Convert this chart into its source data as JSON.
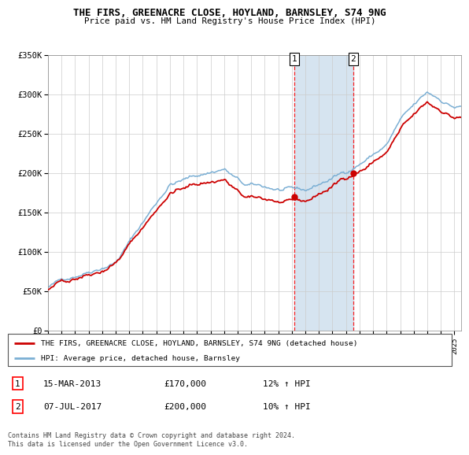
{
  "title": "THE FIRS, GREENACRE CLOSE, HOYLAND, BARNSLEY, S74 9NG",
  "subtitle": "Price paid vs. HM Land Registry's House Price Index (HPI)",
  "ylim": [
    0,
    350000
  ],
  "xlim_start": 1995.0,
  "xlim_end": 2025.5,
  "hpi_color": "#7bafd4",
  "price_color": "#cc0000",
  "highlight_color": "#d6e4f0",
  "sale1_year": 2013.2,
  "sale1_price": 170000,
  "sale1_label": "15-MAR-2013",
  "sale1_hpi_text": "12% ↑ HPI",
  "sale2_year": 2017.53,
  "sale2_price": 200000,
  "sale2_label": "07-JUL-2017",
  "sale2_hpi_text": "10% ↑ HPI",
  "legend_property": "THE FIRS, GREENACRE CLOSE, HOYLAND, BARNSLEY, S74 9NG (detached house)",
  "legend_hpi": "HPI: Average price, detached house, Barnsley",
  "footnote": "Contains HM Land Registry data © Crown copyright and database right 2024.\nThis data is licensed under the Open Government Licence v3.0."
}
